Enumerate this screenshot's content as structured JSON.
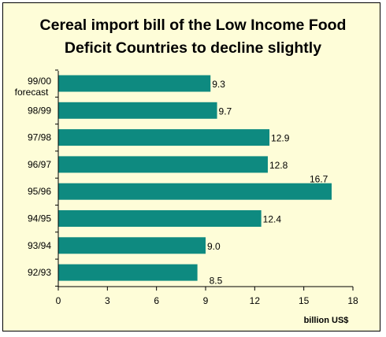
{
  "chart_data": {
    "type": "bar",
    "orientation": "horizontal",
    "title_lines": [
      "Cereal import bill of the Low Income Food",
      "Deficit Countries to decline slightly"
    ],
    "categories": [
      "99/00",
      "98/99",
      "97/98",
      "96/97",
      "95/96",
      "94/95",
      "93/94",
      "92/93"
    ],
    "category_sublabels": [
      "forecast",
      "",
      "",
      "",
      "",
      "",
      "",
      ""
    ],
    "values": [
      9.3,
      9.7,
      12.9,
      12.8,
      16.7,
      12.4,
      9.0,
      8.5
    ],
    "data_labels": [
      "9.3",
      "9.7",
      "12.9",
      "12.8",
      "16.7",
      "12.4",
      "9.0",
      "8.5"
    ],
    "xticks": [
      "0",
      "3",
      "6",
      "9",
      "12",
      "15",
      "18"
    ],
    "xlim": [
      0,
      18
    ],
    "xlabel": "billion US$",
    "grid": false,
    "colors": {
      "bar": "#0e8a80",
      "background": "#fefdd8",
      "border": "#000000"
    }
  }
}
